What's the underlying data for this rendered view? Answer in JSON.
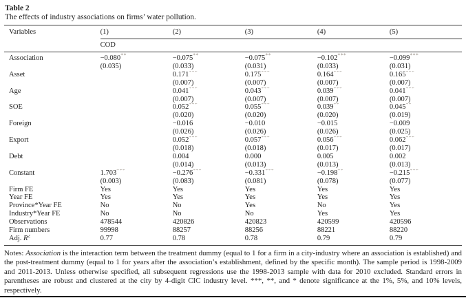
{
  "page": {
    "title": "Table 2",
    "caption": "The effects of industry associations on firms’ water pollution."
  },
  "table": {
    "header": {
      "variables_label": "Variables",
      "columns": [
        "(1)",
        "(2)",
        "(3)",
        "(4)",
        "(5)"
      ],
      "dep_var_label": "COD"
    },
    "coef_rows": [
      {
        "label": "Association",
        "cells": [
          {
            "coef": "−0.080",
            "stars": "**",
            "se": "(0.035)"
          },
          {
            "coef": "−0.075",
            "stars": "**",
            "se": "(0.033)"
          },
          {
            "coef": "−0.075",
            "stars": "**",
            "se": "(0.031)"
          },
          {
            "coef": "−0.102",
            "stars": "***",
            "se": "(0.033)"
          },
          {
            "coef": "−0.099",
            "stars": "***",
            "se": "(0.031)"
          }
        ]
      },
      {
        "label": "Asset",
        "cells": [
          {
            "coef": "",
            "stars": "",
            "se": ""
          },
          {
            "coef": "0.171",
            "stars": "***",
            "se": "(0.007)"
          },
          {
            "coef": "0.175",
            "stars": "***",
            "se": "(0.007)"
          },
          {
            "coef": "0.164",
            "stars": "***",
            "se": "(0.007)"
          },
          {
            "coef": "0.165",
            "stars": "***",
            "se": "(0.007)"
          }
        ]
      },
      {
        "label": "Age",
        "cells": [
          {
            "coef": "",
            "stars": "",
            "se": ""
          },
          {
            "coef": "0.041",
            "stars": "***",
            "se": "(0.007)"
          },
          {
            "coef": "0.043",
            "stars": "***",
            "se": "(0.007)"
          },
          {
            "coef": "0.039",
            "stars": "***",
            "se": "(0.007)"
          },
          {
            "coef": "0.041",
            "stars": "***",
            "se": "(0.007)"
          }
        ]
      },
      {
        "label": "SOE",
        "cells": [
          {
            "coef": "",
            "stars": "",
            "se": ""
          },
          {
            "coef": "0.052",
            "stars": "***",
            "se": "(0.020)"
          },
          {
            "coef": "0.055",
            "stars": "***",
            "se": "(0.020)"
          },
          {
            "coef": "0.039",
            "stars": "**",
            "se": "(0.020)"
          },
          {
            "coef": "0.045",
            "stars": "**",
            "se": "(0.019)"
          }
        ]
      },
      {
        "label": "Foreign",
        "cells": [
          {
            "coef": "",
            "stars": "",
            "se": ""
          },
          {
            "coef": "−0.016",
            "stars": "",
            "se": "(0.026)"
          },
          {
            "coef": "−0.010",
            "stars": "",
            "se": "(0.026)"
          },
          {
            "coef": "−0.015",
            "stars": "",
            "se": "(0.026)"
          },
          {
            "coef": "−0.009",
            "stars": "",
            "se": "(0.025)"
          }
        ]
      },
      {
        "label": "Export",
        "cells": [
          {
            "coef": "",
            "stars": "",
            "se": ""
          },
          {
            "coef": "0.052",
            "stars": "***",
            "se": "(0.018)"
          },
          {
            "coef": "0.057",
            "stars": "***",
            "se": "(0.018)"
          },
          {
            "coef": "0.056",
            "stars": "***",
            "se": "(0.017)"
          },
          {
            "coef": "0.062",
            "stars": "***",
            "se": "(0.017)"
          }
        ]
      },
      {
        "label": "Debt",
        "cells": [
          {
            "coef": "",
            "stars": "",
            "se": ""
          },
          {
            "coef": "0.004",
            "stars": "",
            "se": "(0.014)"
          },
          {
            "coef": "0.000",
            "stars": "",
            "se": "(0.013)"
          },
          {
            "coef": "0.005",
            "stars": "",
            "se": "(0.013)"
          },
          {
            "coef": "0.002",
            "stars": "",
            "se": "(0.013)"
          }
        ]
      },
      {
        "label": "Constant",
        "cells": [
          {
            "coef": "1.703",
            "stars": "***",
            "se": "(0.003)"
          },
          {
            "coef": "−0.276",
            "stars": "***",
            "se": "(0.083)"
          },
          {
            "coef": "−0.331",
            "stars": "***",
            "se": "(0.081)"
          },
          {
            "coef": "−0.198",
            "stars": "**",
            "se": "(0.078)"
          },
          {
            "coef": "−0.215",
            "stars": "***",
            "se": "(0.077)"
          }
        ]
      }
    ],
    "info_rows": [
      {
        "label": "Firm FE",
        "values": [
          "Yes",
          "Yes",
          "Yes",
          "Yes",
          "Yes"
        ]
      },
      {
        "label": "Year FE",
        "values": [
          "Yes",
          "Yes",
          "Yes",
          "Yes",
          "Yes"
        ]
      },
      {
        "label": "Province*Year FE",
        "values": [
          "No",
          "No",
          "Yes",
          "No",
          "Yes"
        ]
      },
      {
        "label": "Industry*Year FE",
        "values": [
          "No",
          "No",
          "No",
          "Yes",
          "Yes"
        ]
      },
      {
        "label": "Observations",
        "values": [
          "478544",
          "420826",
          "420823",
          "420599",
          "420596"
        ]
      },
      {
        "label": "Firm numbers",
        "values": [
          "99998",
          "88257",
          "88256",
          "88221",
          "88220"
        ]
      },
      {
        "label": "Adj. R²",
        "label_parts": {
          "prefix": "Adj. ",
          "variable": "R",
          "sup": "2"
        },
        "values": [
          "0.77",
          "0.78",
          "0.78",
          "0.79",
          "0.79"
        ]
      }
    ]
  },
  "notes": {
    "prefix": "Notes: ",
    "term": "Association",
    "body": " is the interaction term between the treatment dummy (equal to 1 for a firm in a city-industry where an association is established) and the post-treatment dummy (equal to 1 for years after the association’s establishment, defined by the specific month). The sample period is 1998-2009 and 2011-2013. Unless otherwise specified, all subsequent regressions use the 1998-2013 sample with data for 2010 excluded. Standard errors in parentheses are robust and clustered at the city by 4-digit CIC industry level. ***, **, and * denote significance at the 1%, 5%, and 10% levels, respectively."
  }
}
